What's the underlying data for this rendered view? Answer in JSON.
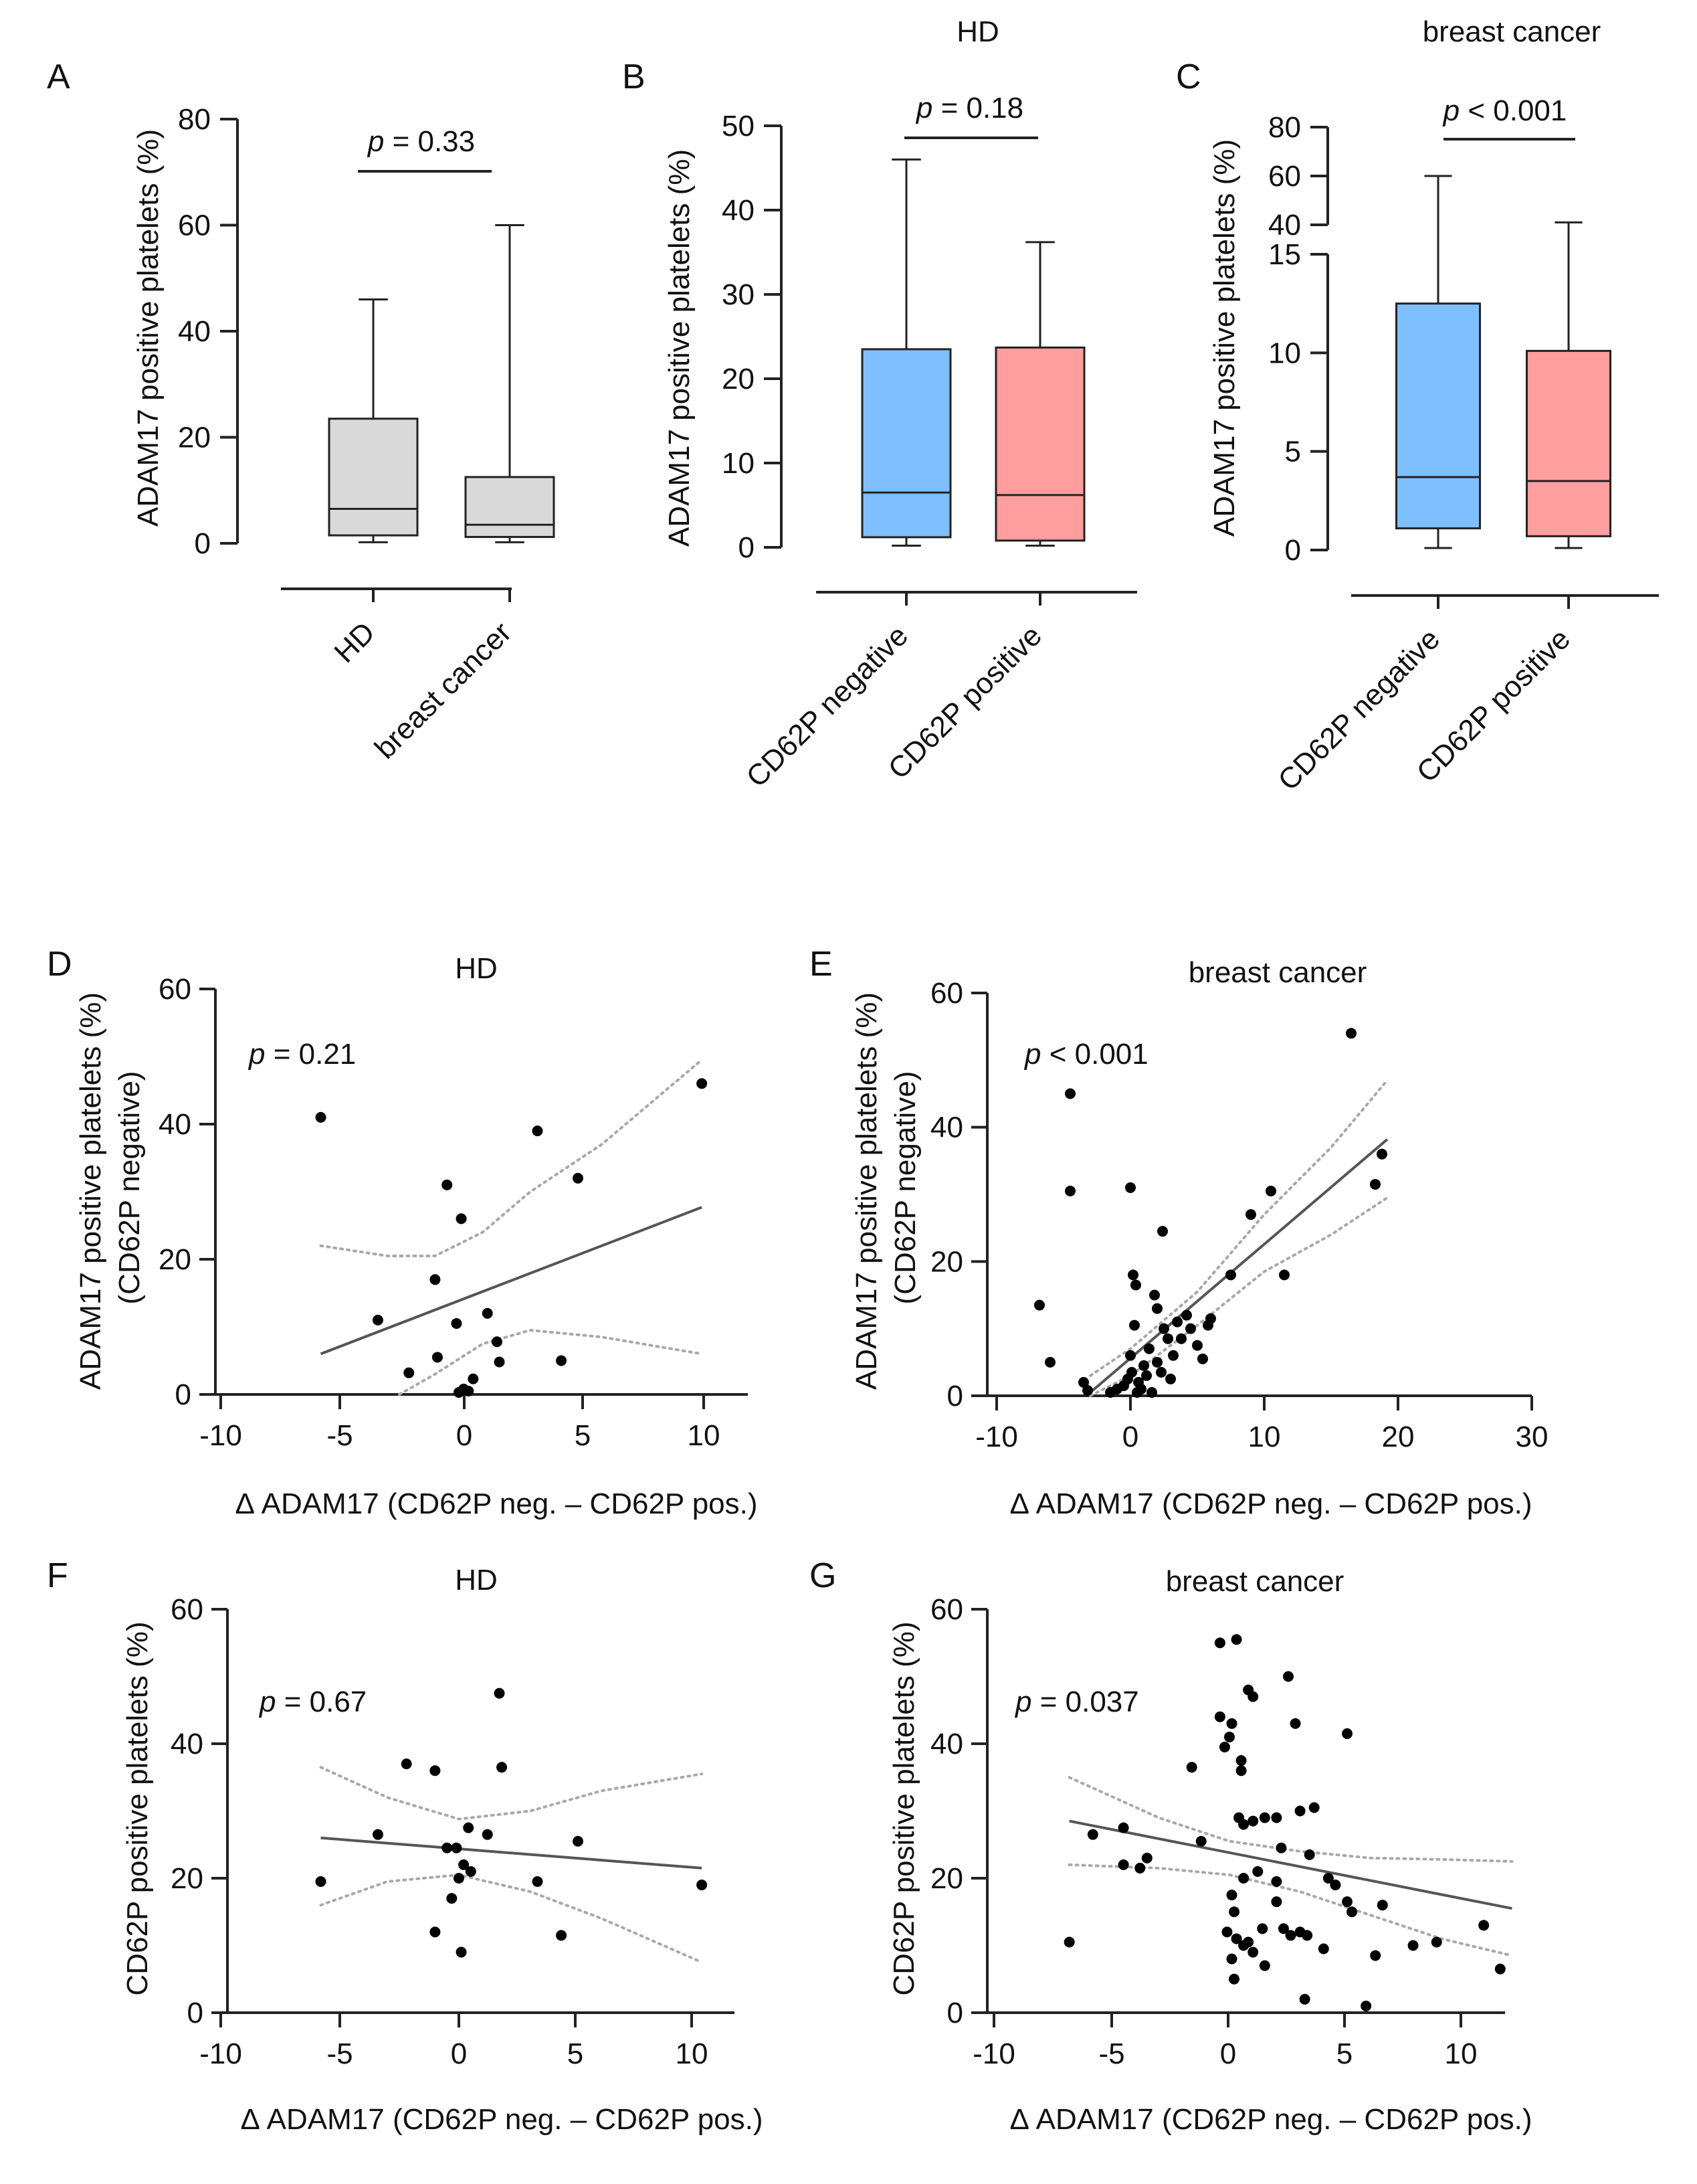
{
  "colors": {
    "grey_box": "#d9d9d9",
    "blue_box": "#7fbfff",
    "red_box": "#ff9e9e",
    "line": "#555555",
    "ci": "#a8a8a8",
    "dot": "#000000"
  },
  "chart_data": [
    {
      "panel": "A",
      "type": "box",
      "title": "",
      "ylabel": "ADAM17 positive platelets (%)",
      "ylim": [
        0,
        80
      ],
      "yticks": [
        "0",
        "20",
        "40",
        "60",
        "80"
      ],
      "categories": [
        "HD",
        "breast cancer"
      ],
      "boxes": [
        {
          "min": 0.2,
          "q1": 1.5,
          "median": 6.5,
          "q3": 23.5,
          "max": 46
        },
        {
          "min": 0.2,
          "q1": 1.2,
          "median": 3.5,
          "q3": 12.5,
          "max": 60
        }
      ],
      "p_label": "p",
      "p_value": " = 0.33"
    },
    {
      "panel": "B",
      "type": "box",
      "title": "HD",
      "ylabel": "ADAM17 positive platelets (%)",
      "ylim": [
        0,
        50
      ],
      "yticks": [
        "0",
        "10",
        "20",
        "30",
        "40",
        "50"
      ],
      "categories": [
        "CD62P negative",
        "CD62P positive"
      ],
      "boxes": [
        {
          "min": 0.2,
          "q1": 1.2,
          "median": 6.5,
          "q3": 23.5,
          "max": 46
        },
        {
          "min": 0.2,
          "q1": 0.8,
          "median": 6.2,
          "q3": 23.7,
          "max": 36.2
        }
      ],
      "p_label": "p",
      "p_value": " = 0.18"
    },
    {
      "panel": "C",
      "type": "box",
      "title": "breast cancer",
      "ylabel": "ADAM17 positive platelets (%)",
      "ylim": [
        0,
        80
      ],
      "axis_break": [
        15,
        40
      ],
      "yticks": [
        "0",
        "5",
        "10",
        "15",
        "40",
        "60",
        "80"
      ],
      "categories": [
        "CD62P negative",
        "CD62P positive"
      ],
      "boxes": [
        {
          "min": 0.1,
          "q1": 1.1,
          "median": 3.7,
          "q3": 12.5,
          "max": 60
        },
        {
          "min": 0.1,
          "q1": 0.7,
          "median": 3.5,
          "q3": 10.1,
          "max": 41
        }
      ],
      "p_label": "p",
      "p_value": " < 0.001"
    },
    {
      "panel": "D",
      "type": "scatter",
      "title": "HD",
      "xlabel": "Δ ADAM17  (CD62P neg. – CD62P pos.)",
      "ylabel": "ADAM17 positive platelets (%)",
      "ylabel2": "(CD62P negative)",
      "xlim": [
        -10,
        12
      ],
      "ylim": [
        0,
        60
      ],
      "xticks": [
        "-10",
        "-5",
        "0",
        "5",
        "10"
      ],
      "yticks": [
        "0",
        "20",
        "40",
        "60"
      ],
      "points": [
        [
          -5.8,
          41
        ],
        [
          -3.4,
          11
        ],
        [
          -2.1,
          3.2
        ],
        [
          -1,
          17
        ],
        [
          -0.9,
          5.5
        ],
        [
          -0.5,
          31
        ],
        [
          -0.1,
          10.5
        ],
        [
          0,
          0.3
        ],
        [
          0.1,
          26
        ],
        [
          0.2,
          0.8
        ],
        [
          0.4,
          0.5
        ],
        [
          0.6,
          2.3
        ],
        [
          1.2,
          12
        ],
        [
          1.6,
          7.8
        ],
        [
          1.7,
          4.8
        ],
        [
          3.3,
          39
        ],
        [
          4.3,
          5
        ],
        [
          5,
          32
        ],
        [
          10.2,
          46
        ]
      ],
      "fit": [
        [
          -5.8,
          6
        ],
        [
          10.2,
          27.7
        ]
      ],
      "ci_upper": [
        [
          -5.8,
          22
        ],
        [
          -3,
          20.5
        ],
        [
          -1,
          20.5
        ],
        [
          1,
          24
        ],
        [
          3,
          30
        ],
        [
          6,
          37
        ],
        [
          10.2,
          49.5
        ]
      ],
      "ci_lower": [
        [
          -2.5,
          0
        ],
        [
          -1,
          3
        ],
        [
          1,
          7.5
        ],
        [
          3,
          9.5
        ],
        [
          6,
          8.5
        ],
        [
          10.2,
          6
        ]
      ],
      "p_label": "p",
      "p_value": " = 0.21"
    },
    {
      "panel": "E",
      "type": "scatter",
      "title": "breast cancer",
      "xlabel": "Δ ADAM17  (CD62P neg. – CD62P pos.)",
      "ylabel": "ADAM17 positive platelets (%)",
      "ylabel2": "(CD62P negative)",
      "xlim": [
        -10,
        30
      ],
      "ylim": [
        0,
        60
      ],
      "xticks": [
        "-10",
        "0",
        "10",
        "20",
        "30"
      ],
      "yticks": [
        "0",
        "20",
        "40",
        "60"
      ],
      "points": [
        [
          -6.8,
          13.5
        ],
        [
          -6,
          5
        ],
        [
          -4.5,
          45
        ],
        [
          -4.5,
          30.5
        ],
        [
          -3.5,
          2
        ],
        [
          -3.2,
          0.8
        ],
        [
          -1.5,
          0.5
        ],
        [
          -1,
          1
        ],
        [
          -0.5,
          1.5
        ],
        [
          -0.2,
          2.5
        ],
        [
          0,
          31
        ],
        [
          0,
          6
        ],
        [
          0.1,
          3.5
        ],
        [
          0.2,
          18
        ],
        [
          0.3,
          10.5
        ],
        [
          0.4,
          16.5
        ],
        [
          0.5,
          0.5
        ],
        [
          0.6,
          2
        ],
        [
          0.8,
          1
        ],
        [
          1,
          4.5
        ],
        [
          1.2,
          3
        ],
        [
          1.4,
          7
        ],
        [
          1.6,
          0.5
        ],
        [
          1.8,
          15
        ],
        [
          2,
          13
        ],
        [
          2,
          5
        ],
        [
          2.3,
          3.5
        ],
        [
          2.4,
          24.5
        ],
        [
          2.5,
          10
        ],
        [
          2.8,
          8.5
        ],
        [
          3,
          2.5
        ],
        [
          3.2,
          6
        ],
        [
          3.5,
          11
        ],
        [
          3.8,
          8.5
        ],
        [
          4.2,
          12
        ],
        [
          4.5,
          10
        ],
        [
          5,
          7.5
        ],
        [
          5.4,
          5.5
        ],
        [
          5.8,
          10.5
        ],
        [
          6,
          11.5
        ],
        [
          7.5,
          18
        ],
        [
          9,
          27
        ],
        [
          10.5,
          30.5
        ],
        [
          11.5,
          18
        ],
        [
          16.5,
          54
        ],
        [
          18.3,
          31.5
        ],
        [
          18.8,
          36
        ]
      ],
      "fit": [
        [
          -3,
          0.5
        ],
        [
          19.2,
          38.2
        ]
      ],
      "ci_upper": [
        [
          -3,
          3
        ],
        [
          0,
          7
        ],
        [
          5,
          15.5
        ],
        [
          10,
          27
        ],
        [
          15,
          37
        ],
        [
          19.2,
          47
        ]
      ],
      "ci_lower": [
        [
          -3,
          0
        ],
        [
          0,
          3
        ],
        [
          5,
          10.5
        ],
        [
          10,
          18.5
        ],
        [
          15,
          24
        ],
        [
          19.2,
          29.5
        ]
      ],
      "p_label": "p",
      "p_value": " < 0.001"
    },
    {
      "panel": "F",
      "type": "scatter",
      "title": "HD",
      "xlabel": "Δ ADAM17  (CD62P neg. – CD62P pos.)",
      "ylabel": "CD62P positive platelets (%)",
      "xlim": [
        -10,
        12
      ],
      "ylim": [
        0,
        60
      ],
      "xticks": [
        "-10",
        "-5",
        "0",
        "5",
        "10"
      ],
      "yticks": [
        "0",
        "20",
        "40",
        "60"
      ],
      "points": [
        [
          -5.8,
          19.5
        ],
        [
          -3.4,
          26.5
        ],
        [
          -2.2,
          37
        ],
        [
          -1,
          36
        ],
        [
          -1,
          12
        ],
        [
          -0.5,
          24.5
        ],
        [
          -0.3,
          17
        ],
        [
          -0.1,
          24.5
        ],
        [
          0,
          20
        ],
        [
          0.1,
          9
        ],
        [
          0.2,
          22
        ],
        [
          0.4,
          27.5
        ],
        [
          0.5,
          21
        ],
        [
          1.2,
          26.5
        ],
        [
          1.7,
          47.5
        ],
        [
          1.8,
          36.5
        ],
        [
          3.3,
          19.5
        ],
        [
          4.3,
          11.5
        ],
        [
          5,
          25.5
        ],
        [
          10.2,
          19
        ]
      ],
      "fit": [
        [
          -5.8,
          26
        ],
        [
          10.2,
          21.5
        ]
      ],
      "ci_upper": [
        [
          -5.8,
          36.5
        ],
        [
          -3,
          32
        ],
        [
          0,
          28.8
        ],
        [
          3,
          30
        ],
        [
          6,
          33
        ],
        [
          10.2,
          35.5
        ]
      ],
      "ci_lower": [
        [
          -5.8,
          16
        ],
        [
          -3,
          19.5
        ],
        [
          0,
          20.5
        ],
        [
          3,
          18
        ],
        [
          6,
          14
        ],
        [
          10.2,
          7.5
        ]
      ],
      "p_label": "p",
      "p_value": " = 0.67"
    },
    {
      "panel": "G",
      "type": "scatter",
      "title": "breast cancer",
      "xlabel": "Δ ADAM17  (CD62P neg. – CD62P pos.)",
      "ylabel": "CD62P positive platelets (%)",
      "xlim": [
        -10,
        12
      ],
      "ylim": [
        0,
        60
      ],
      "xticks": [
        "-10",
        "-5",
        "0",
        "5",
        "10"
      ],
      "yticks": [
        "0",
        "20",
        "40",
        "60"
      ],
      "points": [
        [
          -6.8,
          10.5
        ],
        [
          -5.8,
          26.5
        ],
        [
          -4.5,
          27.5
        ],
        [
          -4.5,
          22
        ],
        [
          -3.8,
          21.5
        ],
        [
          -3.5,
          23
        ],
        [
          -1.6,
          36.5
        ],
        [
          -1.2,
          25.5
        ],
        [
          -0.4,
          55
        ],
        [
          -0.4,
          44
        ],
        [
          -0.2,
          39.5
        ],
        [
          -0.1,
          12
        ],
        [
          0,
          41
        ],
        [
          0.1,
          43
        ],
        [
          0.1,
          17.5
        ],
        [
          0.1,
          8
        ],
        [
          0.2,
          5
        ],
        [
          0.2,
          15
        ],
        [
          0.3,
          55.5
        ],
        [
          0.3,
          11
        ],
        [
          0.4,
          29
        ],
        [
          0.5,
          37.5
        ],
        [
          0.5,
          36
        ],
        [
          0.6,
          28
        ],
        [
          0.6,
          20
        ],
        [
          0.6,
          10
        ],
        [
          0.8,
          48
        ],
        [
          0.8,
          10.5
        ],
        [
          1,
          47
        ],
        [
          1,
          28.5
        ],
        [
          1,
          9
        ],
        [
          1.2,
          21
        ],
        [
          1.4,
          12.5
        ],
        [
          1.5,
          29
        ],
        [
          1.5,
          7
        ],
        [
          2,
          29
        ],
        [
          2,
          19.5
        ],
        [
          2,
          16.5
        ],
        [
          2.2,
          24.5
        ],
        [
          2.3,
          12.5
        ],
        [
          2.5,
          50
        ],
        [
          2.6,
          11.5
        ],
        [
          2.8,
          43
        ],
        [
          3,
          30
        ],
        [
          3,
          12
        ],
        [
          3.2,
          2
        ],
        [
          3.3,
          11.5
        ],
        [
          3.4,
          23.5
        ],
        [
          3.6,
          30.5
        ],
        [
          4,
          9.5
        ],
        [
          4.2,
          20
        ],
        [
          4.5,
          19
        ],
        [
          5,
          41.5
        ],
        [
          5,
          16.5
        ],
        [
          5.2,
          15
        ],
        [
          5.8,
          1
        ],
        [
          6.2,
          8.5
        ],
        [
          6.5,
          16
        ],
        [
          7.8,
          10
        ],
        [
          8.8,
          10.5
        ],
        [
          10.8,
          13
        ],
        [
          11.5,
          6.5
        ]
      ],
      "fit": [
        [
          -6.8,
          28.5
        ],
        [
          12,
          15.5
        ]
      ],
      "ci_upper": [
        [
          -6.8,
          35
        ],
        [
          -3,
          29
        ],
        [
          0,
          25.5
        ],
        [
          3,
          24
        ],
        [
          6,
          23
        ],
        [
          9,
          22.8
        ],
        [
          12,
          22.5
        ]
      ],
      "ci_lower": [
        [
          -6.8,
          22
        ],
        [
          -3,
          21.5
        ],
        [
          0,
          20.5
        ],
        [
          3,
          18
        ],
        [
          6,
          14.5
        ],
        [
          9,
          11
        ],
        [
          12,
          8.5
        ]
      ],
      "p_label": "p",
      "p_value": " = 0.037"
    }
  ]
}
